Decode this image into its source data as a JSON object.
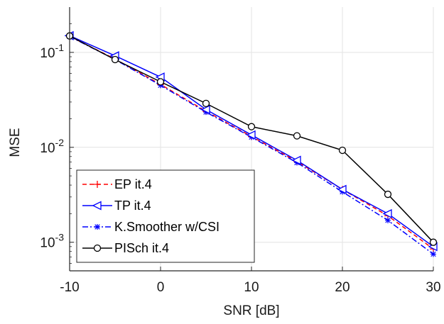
{
  "chart_data": {
    "type": "line",
    "xlabel": "SNR [dB]",
    "ylabel": "MSE",
    "xlim": [
      -10,
      30
    ],
    "ylim": [
      0.0005,
      0.3
    ],
    "yscale": "log",
    "grid": true,
    "legend_position": "bottom-left",
    "x": [
      -10,
      -5,
      0,
      5,
      10,
      15,
      20,
      25,
      30
    ],
    "x_tick_labels": [
      "-10",
      "0",
      "10",
      "20",
      "30"
    ],
    "y_tick_labels": [
      {
        "base": "10",
        "exp": "-3"
      },
      {
        "base": "10",
        "exp": "-2"
      },
      {
        "base": "10",
        "exp": "-1"
      }
    ],
    "series": [
      {
        "name": "EP it.4",
        "color": "#ff0000",
        "dash": "6,4",
        "marker": "plus",
        "values": [
          0.148,
          0.085,
          0.046,
          0.024,
          0.013,
          0.0071,
          0.0036,
          0.0019,
          0.00085
        ]
      },
      {
        "name": "TP it.4",
        "color": "#0000ff",
        "dash": "",
        "marker": "triangle-left",
        "values": [
          0.15,
          0.092,
          0.055,
          0.025,
          0.0135,
          0.0073,
          0.0036,
          0.002,
          0.0009
        ]
      },
      {
        "name": "K.Smoother w/CSI",
        "color": "#0000ff",
        "dash": "8,3,2,3",
        "marker": "asterisk",
        "values": [
          0.147,
          0.084,
          0.045,
          0.0235,
          0.0128,
          0.0069,
          0.0034,
          0.0017,
          0.00075
        ]
      },
      {
        "name": "PISch it.4",
        "color": "#000000",
        "dash": "",
        "marker": "circle",
        "values": [
          0.149,
          0.084,
          0.049,
          0.029,
          0.0165,
          0.0132,
          0.0093,
          0.0032,
          0.001
        ]
      }
    ]
  }
}
